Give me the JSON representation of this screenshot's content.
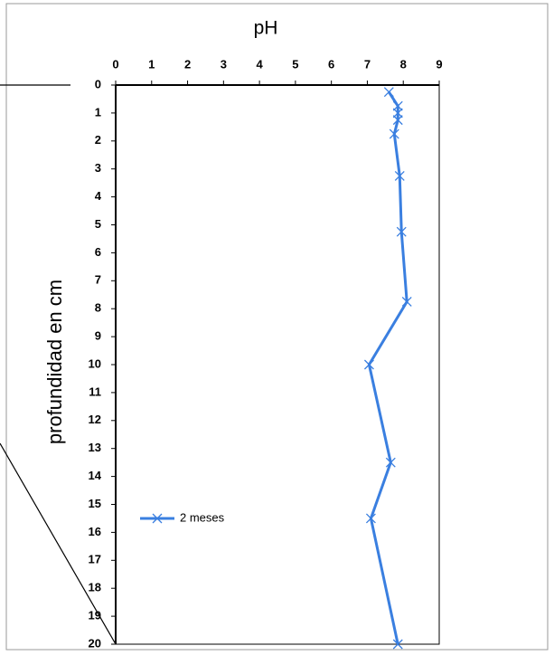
{
  "chart_data": {
    "type": "line",
    "title": "pH",
    "y_label": "profundidad en cm",
    "xlim": [
      0,
      9
    ],
    "xticks": [
      0,
      1,
      2,
      3,
      4,
      5,
      6,
      7,
      8,
      9
    ],
    "ylim": [
      20,
      0
    ],
    "yticks": [
      0,
      1,
      2,
      3,
      4,
      5,
      6,
      7,
      8,
      9,
      10,
      11,
      12,
      13,
      14,
      15,
      16,
      17,
      18,
      19,
      20
    ],
    "series": [
      {
        "name": "2 meses",
        "color": "#3a7fe0",
        "x": [
          7.6,
          7.85,
          7.85,
          7.85,
          7.75,
          7.9,
          7.95,
          8.1,
          7.05,
          7.65,
          7.1,
          7.85
        ],
        "values": [
          0.25,
          0.75,
          1,
          1.25,
          1.75,
          3.25,
          5.25,
          7.75,
          10,
          13.5,
          15.5,
          20
        ]
      }
    ]
  }
}
